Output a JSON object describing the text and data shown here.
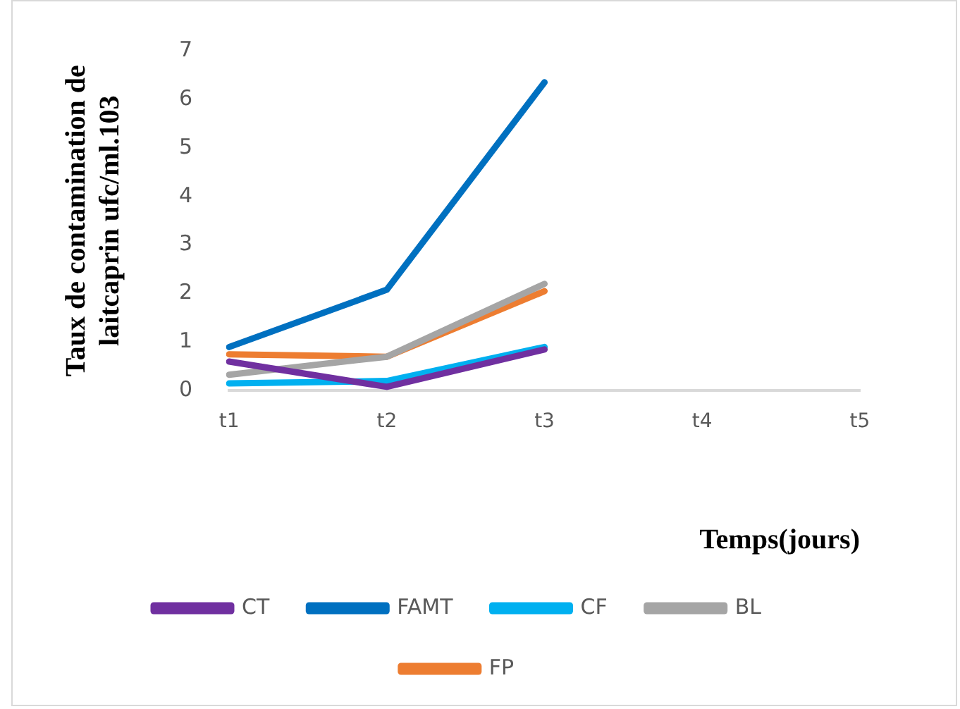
{
  "chart_data": {
    "type": "line",
    "xlabel": "Temps(jours)",
    "ylabel": "Taux de contamination de laitcaprin ufc/ml.103",
    "categories": [
      "t1",
      "t2",
      "t3",
      "t4",
      "t5"
    ],
    "series": [
      {
        "name": "CT",
        "color": "#7030a0",
        "values": [
          0.6,
          0.08,
          0.85,
          null,
          null
        ]
      },
      {
        "name": "FAMT",
        "color": "#0070c0",
        "values": [
          0.9,
          2.08,
          6.35,
          null,
          null
        ]
      },
      {
        "name": "CF",
        "color": "#00b0f0",
        "values": [
          0.15,
          0.2,
          0.9,
          null,
          null
        ]
      },
      {
        "name": "BL",
        "color": "#a5a5a5",
        "values": [
          0.33,
          0.7,
          2.2,
          null,
          null
        ]
      },
      {
        "name": "FP",
        "color": "#ed7d31",
        "values": [
          0.75,
          0.7,
          2.05,
          null,
          null
        ]
      }
    ],
    "ylim": [
      0,
      7
    ],
    "yticks": [
      0,
      1,
      2,
      3,
      4,
      5,
      6,
      7
    ],
    "grid": false,
    "legend": "bottom",
    "marker": "none",
    "line_style": "solid"
  }
}
